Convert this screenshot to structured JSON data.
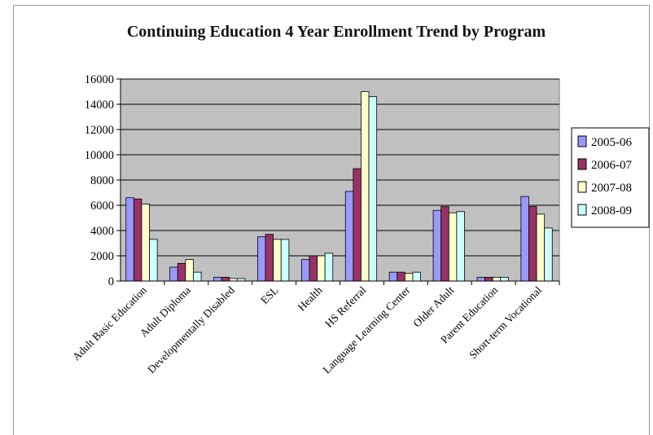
{
  "chart_data": {
    "type": "bar",
    "title": "Continuing Education 4 Year Enrollment Trend by Program",
    "xlabel": "",
    "ylabel": "",
    "ylim": [
      0,
      16000
    ],
    "yticks": [
      0,
      2000,
      4000,
      6000,
      8000,
      10000,
      12000,
      14000,
      16000
    ],
    "grid": true,
    "legend_position": "right",
    "categories": [
      "Adult Basic Education",
      "Adult Diploma",
      "Developmentally Disabled",
      "ESL",
      "Health",
      "HS Referral",
      "Language Learning Center",
      "Older Adult",
      "Parent Education",
      "Short-term Vocational"
    ],
    "series": [
      {
        "name": "2005-06",
        "color": "#9999ff",
        "values": [
          6600,
          1100,
          300,
          3500,
          1700,
          7100,
          700,
          5600,
          300,
          6700
        ]
      },
      {
        "name": "2006-07",
        "color": "#993366",
        "values": [
          6500,
          1400,
          300,
          3700,
          2000,
          8900,
          700,
          5900,
          300,
          5900
        ]
      },
      {
        "name": "2007-08",
        "color": "#ffffcc",
        "values": [
          6100,
          1700,
          200,
          3300,
          2000,
          15000,
          600,
          5400,
          300,
          5300
        ]
      },
      {
        "name": "2008-09",
        "color": "#ccffff",
        "values": [
          3300,
          700,
          200,
          3300,
          2200,
          14600,
          700,
          5500,
          300,
          4200
        ]
      }
    ]
  }
}
